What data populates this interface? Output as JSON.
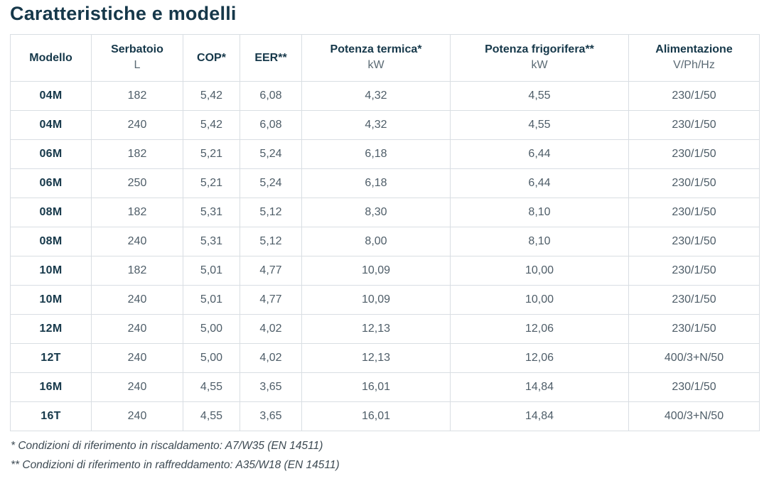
{
  "page_title": "Caratteristiche e modelli",
  "colors": {
    "title_text": "#16384a",
    "header_text": "#16384a",
    "header_subtext": "#5b6a74",
    "body_text": "#4e5d68",
    "border": "#d9dee3",
    "background": "#ffffff"
  },
  "table": {
    "columns": [
      {
        "label": "Modello",
        "sublabel": ""
      },
      {
        "label": "Serbatoio",
        "sublabel": "L"
      },
      {
        "label": "COP*",
        "sublabel": ""
      },
      {
        "label": "EER**",
        "sublabel": ""
      },
      {
        "label": "Potenza termica*",
        "sublabel": "kW"
      },
      {
        "label": "Potenza frigorifera**",
        "sublabel": "kW"
      },
      {
        "label": "Alimentazione",
        "sublabel": "V/Ph/Hz"
      }
    ],
    "rows": [
      [
        "04M",
        "182",
        "5,42",
        "6,08",
        "4,32",
        "4,55",
        "230/1/50"
      ],
      [
        "04M",
        "240",
        "5,42",
        "6,08",
        "4,32",
        "4,55",
        "230/1/50"
      ],
      [
        "06M",
        "182",
        "5,21",
        "5,24",
        "6,18",
        "6,44",
        "230/1/50"
      ],
      [
        "06M",
        "250",
        "5,21",
        "5,24",
        "6,18",
        "6,44",
        "230/1/50"
      ],
      [
        "08M",
        "182",
        "5,31",
        "5,12",
        "8,30",
        "8,10",
        "230/1/50"
      ],
      [
        "08M",
        "240",
        "5,31",
        "5,12",
        "8,00",
        "8,10",
        "230/1/50"
      ],
      [
        "10M",
        "182",
        "5,01",
        "4,77",
        "10,09",
        "10,00",
        "230/1/50"
      ],
      [
        "10M",
        "240",
        "5,01",
        "4,77",
        "10,09",
        "10,00",
        "230/1/50"
      ],
      [
        "12M",
        "240",
        "5,00",
        "4,02",
        "12,13",
        "12,06",
        "230/1/50"
      ],
      [
        "12T",
        "240",
        "5,00",
        "4,02",
        "12,13",
        "12,06",
        "400/3+N/50"
      ],
      [
        "16M",
        "240",
        "4,55",
        "3,65",
        "16,01",
        "14,84",
        "230/1/50"
      ],
      [
        "16T",
        "240",
        "4,55",
        "3,65",
        "16,01",
        "14,84",
        "400/3+N/50"
      ]
    ]
  },
  "footnotes": [
    "* Condizioni di riferimento in riscaldamento: A7/W35 (EN 14511)",
    "** Condizioni di riferimento in raffreddamento: A35/W18 (EN 14511)"
  ]
}
